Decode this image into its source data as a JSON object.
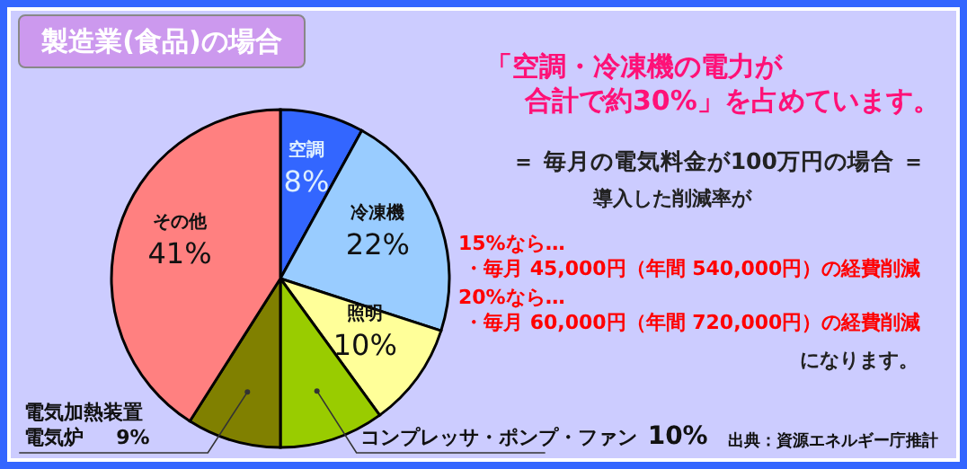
{
  "chart_data": {
    "type": "pie",
    "title": "製造業(食品)の場合",
    "categories": [
      "空調",
      "冷凍機",
      "照明",
      "コンプレッサ・ポンプ・ファン",
      "電気加熱装置電気炉",
      "その他"
    ],
    "values": [
      8,
      22,
      10,
      10,
      9,
      41
    ],
    "value_labels": [
      "8%",
      "22%",
      "10%",
      "10%",
      "9%",
      "41%"
    ],
    "colors": [
      "#3366ff",
      "#99ccff",
      "#ffff99",
      "#99cc00",
      "#808000",
      "#ff8080"
    ],
    "legend": false,
    "annotations": [
      "「空調・冷凍機の電力が合計で約30%」を占めています。",
      "＝ 毎月の電気料金が100万円の場合 ＝",
      "導入した削減率が",
      "15%なら…",
      "・毎月 45,000円（年間 540,000円）の経費削減",
      "20%なら…",
      "・毎月 60,000円（年間 720,000円）の経費削減",
      "になります。",
      "出典：資源エネルギー庁推計"
    ]
  }
}
